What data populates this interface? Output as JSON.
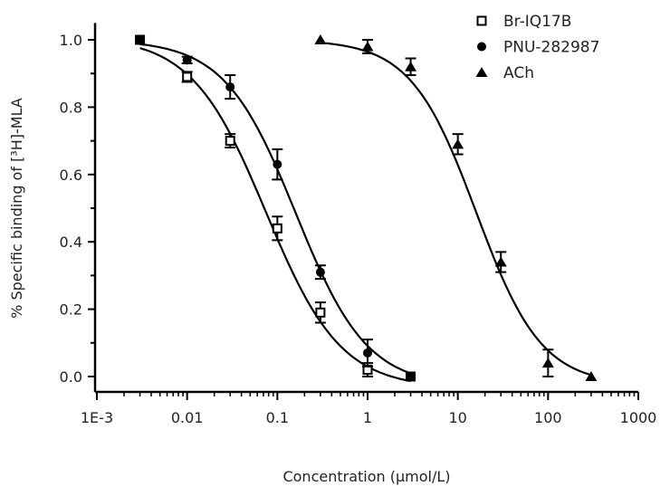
{
  "chart_data": {
    "type": "scatter",
    "title": "",
    "xlabel": "Concentration (μmol/L)",
    "ylabel": "% Specific binding of [³H]-MLA",
    "xscale": "log",
    "xlim": [
      0.001,
      1000
    ],
    "ylim": [
      -0.05,
      1.05
    ],
    "xticks": [
      0.001,
      0.01,
      0.1,
      1,
      10,
      100,
      1000
    ],
    "xtick_labels": [
      "1E-3",
      "0.01",
      "0.1",
      "1",
      "10",
      "100",
      "1000"
    ],
    "yticks": [
      0.0,
      0.2,
      0.4,
      0.6,
      0.8,
      1.0
    ],
    "ytick_labels": [
      "0.0",
      "0.2",
      "0.4",
      "0.6",
      "0.8",
      "1.0"
    ],
    "grid": false,
    "legend_position": "top-right",
    "error_bars": true,
    "fitted_curves": true,
    "series": [
      {
        "name": "Br-IQ17B",
        "marker": "open-square",
        "color": "#000000",
        "x": [
          0.003,
          0.01,
          0.03,
          0.1,
          0.3,
          1,
          3
        ],
        "y": [
          1.0,
          0.89,
          0.7,
          0.44,
          0.19,
          0.02,
          0.0
        ],
        "err": [
          0.0,
          0.015,
          0.02,
          0.035,
          0.03,
          0.02,
          0.0
        ]
      },
      {
        "name": "PNU-282987",
        "marker": "filled-circle",
        "color": "#000000",
        "x": [
          0.003,
          0.01,
          0.03,
          0.1,
          0.3,
          1,
          3
        ],
        "y": [
          1.0,
          0.94,
          0.86,
          0.63,
          0.31,
          0.07,
          0.0
        ],
        "err": [
          0.0,
          0.01,
          0.035,
          0.045,
          0.02,
          0.04,
          0.0
        ]
      },
      {
        "name": "ACh",
        "marker": "filled-triangle",
        "color": "#000000",
        "x": [
          0.3,
          1,
          3,
          10,
          30,
          100,
          300
        ],
        "y": [
          1.0,
          0.98,
          0.92,
          0.69,
          0.34,
          0.04,
          0.0
        ],
        "err": [
          0.0,
          0.02,
          0.025,
          0.03,
          0.03,
          0.04,
          0.0
        ]
      }
    ]
  }
}
